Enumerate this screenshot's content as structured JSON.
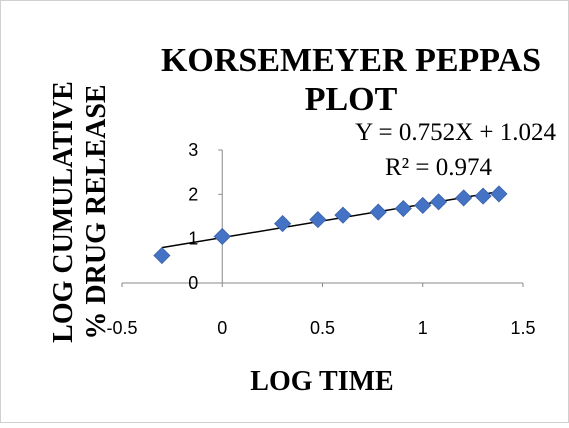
{
  "chart_data": {
    "type": "scatter",
    "title_lines": [
      "KORSEMEYER PEPPAS",
      "PLOT"
    ],
    "xlabel": "LOG TIME",
    "ylabel_lines": [
      "LOG CUMULATIVE",
      "% DRUG RELEASE"
    ],
    "xlim": [
      -0.5,
      1.5
    ],
    "ylim": [
      0,
      3
    ],
    "x_ticks": [
      -0.5,
      0,
      0.5,
      1,
      1.5
    ],
    "x_tick_labels": [
      "-0.5",
      "0",
      "0.5",
      "1",
      "1.5"
    ],
    "y_ticks": [
      0,
      1,
      2,
      3
    ],
    "y_tick_labels": [
      "0",
      "1",
      "2",
      "3"
    ],
    "grid": false,
    "marker": "diamond",
    "marker_color": "#4472C4",
    "line_color": "#000000",
    "points": [
      {
        "x": -0.301,
        "y": 0.62
      },
      {
        "x": 0.0,
        "y": 1.05
      },
      {
        "x": 0.301,
        "y": 1.34
      },
      {
        "x": 0.477,
        "y": 1.43
      },
      {
        "x": 0.602,
        "y": 1.53
      },
      {
        "x": 0.778,
        "y": 1.6
      },
      {
        "x": 0.903,
        "y": 1.68
      },
      {
        "x": 1.0,
        "y": 1.75
      },
      {
        "x": 1.079,
        "y": 1.83
      },
      {
        "x": 1.204,
        "y": 1.92
      },
      {
        "x": 1.301,
        "y": 1.96
      },
      {
        "x": 1.38,
        "y": 2.01
      }
    ],
    "trendline": {
      "slope": 0.752,
      "intercept": 1.024,
      "x_range": [
        -0.301,
        1.38
      ]
    },
    "equation_text": "Y = 0.752X + 1.024",
    "r2_text": "R² = 0.974"
  }
}
